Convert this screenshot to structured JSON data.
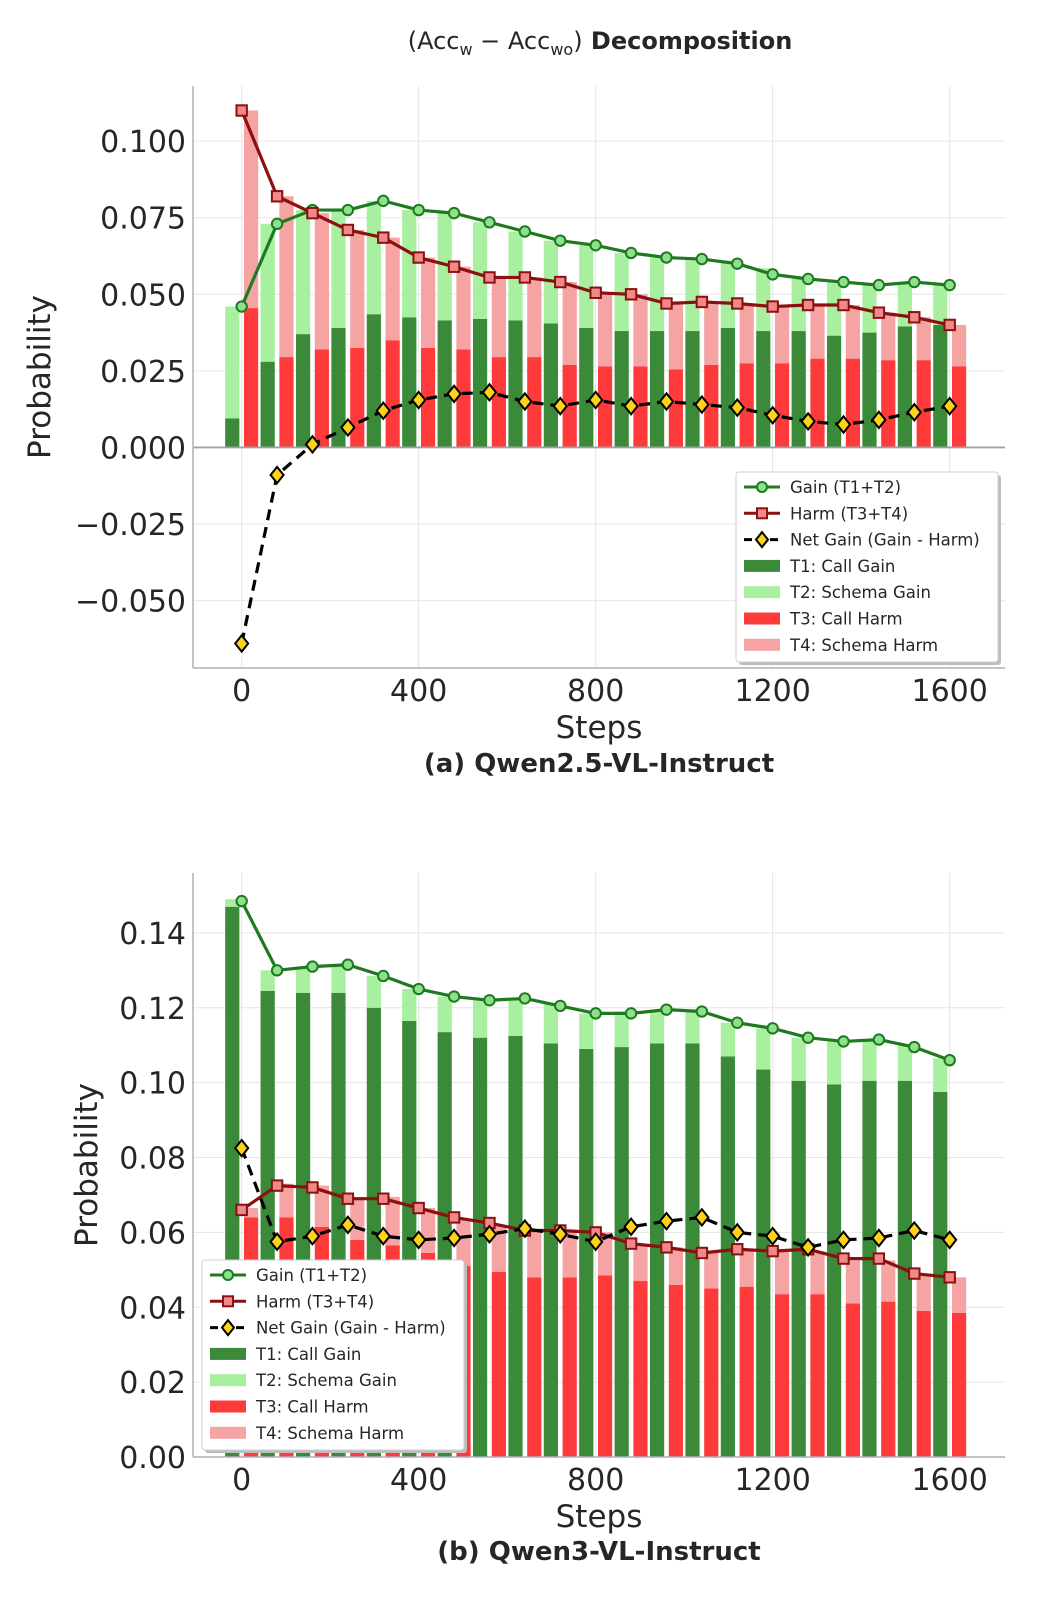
{
  "figure": {
    "title_prefix": "(Acc",
    "title_sub_w": "w",
    "title_minus": " − Acc",
    "title_sub_wo": "wo",
    "title_suffix": ")",
    "title_bold": " Decomposition"
  },
  "legend_labels": {
    "gain": "Gain (T1+T2)",
    "harm": "Harm (T3+T4)",
    "net": "Net Gain (Gain - Harm)",
    "t1": "T1: Call Gain",
    "t2": "T2: Schema Gain",
    "t3": "T3: Call Harm",
    "t4": "T4: Schema Harm"
  },
  "colors": {
    "t1": "#3a8a3a",
    "t2": "#a8f0a0",
    "t3": "#ff3a3a",
    "t4": "#f5a3a3",
    "gain_line": "#1e7a1e",
    "gain_marker": "#8ee08e",
    "harm_line": "#8b1010",
    "harm_marker": "#f08a8a",
    "net_line": "#000000",
    "net_marker": "#ffd21a",
    "grid": "#e6e6e6"
  },
  "chart_data": [
    {
      "type": "bar",
      "caption": "(a) Qwen2.5-VL-Instruct",
      "xlabel": "Steps",
      "ylabel": "Probability",
      "xlim": [
        -110,
        1725
      ],
      "ylim": [
        -0.072,
        0.118
      ],
      "xticks": [
        0,
        400,
        800,
        1200,
        1600
      ],
      "xtick_labels": [
        "0",
        "400",
        "800",
        "1200",
        "1600"
      ],
      "yticks": [
        -0.05,
        -0.025,
        0,
        0.025,
        0.05,
        0.075,
        0.1
      ],
      "ytick_labels": [
        "−0.050",
        "−0.025",
        "0.000",
        "0.025",
        "0.050",
        "0.075",
        "0.100"
      ],
      "zero_line": true,
      "legend_position": "lower-right",
      "steps": [
        0,
        80,
        160,
        240,
        320,
        400,
        480,
        560,
        640,
        720,
        800,
        880,
        960,
        1040,
        1120,
        1200,
        1280,
        1360,
        1440,
        1520,
        1600
      ],
      "series": [
        {
          "name": "T1: Call Gain",
          "values": [
            0.0095,
            0.028,
            0.037,
            0.039,
            0.0435,
            0.0425,
            0.0415,
            0.042,
            0.0415,
            0.0405,
            0.039,
            0.038,
            0.038,
            0.038,
            0.039,
            0.038,
            0.038,
            0.0365,
            0.0375,
            0.0395,
            0.04
          ]
        },
        {
          "name": "T2: Schema Gain",
          "values": [
            0.0365,
            0.045,
            0.0405,
            0.0385,
            0.037,
            0.035,
            0.035,
            0.0315,
            0.029,
            0.027,
            0.027,
            0.0255,
            0.024,
            0.024,
            0.022,
            0.0205,
            0.017,
            0.0175,
            0.0155,
            0.0145,
            0.013
          ]
        },
        {
          "name": "T3: Call Harm",
          "values": [
            0.0455,
            0.0295,
            0.032,
            0.0325,
            0.035,
            0.0325,
            0.032,
            0.0295,
            0.0295,
            0.027,
            0.0265,
            0.0265,
            0.0255,
            0.027,
            0.0275,
            0.0275,
            0.029,
            0.029,
            0.0285,
            0.0285,
            0.0265
          ]
        },
        {
          "name": "T4: Schema Harm",
          "values": [
            0.0645,
            0.0525,
            0.0445,
            0.0385,
            0.0335,
            0.0295,
            0.027,
            0.026,
            0.026,
            0.027,
            0.024,
            0.0235,
            0.0215,
            0.0205,
            0.0195,
            0.0185,
            0.0175,
            0.0175,
            0.0155,
            0.014,
            0.0135
          ]
        },
        {
          "name": "Gain (T1+T2)",
          "values": [
            0.046,
            0.073,
            0.0775,
            0.0775,
            0.0805,
            0.0775,
            0.0765,
            0.0735,
            0.0705,
            0.0675,
            0.066,
            0.0635,
            0.062,
            0.0615,
            0.06,
            0.0565,
            0.055,
            0.054,
            0.053,
            0.054,
            0.053
          ]
        },
        {
          "name": "Harm (T3+T4)",
          "values": [
            0.11,
            0.082,
            0.0765,
            0.071,
            0.0685,
            0.062,
            0.059,
            0.0555,
            0.0555,
            0.054,
            0.0505,
            0.05,
            0.047,
            0.0475,
            0.047,
            0.046,
            0.0465,
            0.0465,
            0.044,
            0.0425,
            0.04
          ]
        },
        {
          "name": "Net Gain (Gain - Harm)",
          "values": [
            -0.064,
            -0.009,
            0.001,
            0.0065,
            0.012,
            0.0155,
            0.0175,
            0.018,
            0.015,
            0.0135,
            0.0155,
            0.0135,
            0.015,
            0.014,
            0.013,
            0.0105,
            0.0085,
            0.0075,
            0.009,
            0.0115,
            0.0135
          ]
        }
      ]
    },
    {
      "type": "bar",
      "caption": "(b) Qwen3-VL-Instruct",
      "xlabel": "Steps",
      "ylabel": "Probability",
      "xlim": [
        -110,
        1725
      ],
      "ylim": [
        0,
        0.156
      ],
      "xticks": [
        0,
        400,
        800,
        1200,
        1600
      ],
      "xtick_labels": [
        "0",
        "400",
        "800",
        "1200",
        "1600"
      ],
      "yticks": [
        0,
        0.02,
        0.04,
        0.06,
        0.08,
        0.1,
        0.12,
        0.14
      ],
      "ytick_labels": [
        "0.00",
        "0.02",
        "0.04",
        "0.06",
        "0.08",
        "0.10",
        "0.12",
        "0.14"
      ],
      "zero_line": false,
      "legend_position": "lower-left",
      "steps": [
        0,
        80,
        160,
        240,
        320,
        400,
        480,
        560,
        640,
        720,
        800,
        880,
        960,
        1040,
        1120,
        1200,
        1280,
        1360,
        1440,
        1520,
        1600
      ],
      "series": [
        {
          "name": "T1: Call Gain",
          "values": [
            0.147,
            0.1245,
            0.124,
            0.124,
            0.12,
            0.1165,
            0.1135,
            0.112,
            0.1125,
            0.1105,
            0.109,
            0.1095,
            0.1105,
            0.1105,
            0.107,
            0.1035,
            0.1005,
            0.0995,
            0.1005,
            0.1005,
            0.0975
          ]
        },
        {
          "name": "T2: Schema Gain",
          "values": [
            0.002,
            0.0055,
            0.0065,
            0.007,
            0.0085,
            0.0085,
            0.0095,
            0.01,
            0.01,
            0.0105,
            0.0095,
            0.0095,
            0.009,
            0.009,
            0.009,
            0.011,
            0.0115,
            0.0115,
            0.011,
            0.0095,
            0.009
          ]
        },
        {
          "name": "T3: Call Harm",
          "values": [
            0.064,
            0.064,
            0.0615,
            0.058,
            0.0565,
            0.0545,
            0.051,
            0.0495,
            0.048,
            0.048,
            0.0485,
            0.047,
            0.046,
            0.045,
            0.0455,
            0.0435,
            0.0435,
            0.041,
            0.0415,
            0.039,
            0.0385
          ]
        },
        {
          "name": "T4: Schema Harm",
          "values": [
            0.0025,
            0.009,
            0.011,
            0.011,
            0.013,
            0.012,
            0.0125,
            0.0125,
            0.0125,
            0.0125,
            0.0115,
            0.01,
            0.01,
            0.0095,
            0.01,
            0.0115,
            0.0115,
            0.0115,
            0.011,
            0.01,
            0.0095
          ]
        },
        {
          "name": "Gain (T1+T2)",
          "values": [
            0.1485,
            0.13,
            0.131,
            0.1315,
            0.1285,
            0.125,
            0.123,
            0.122,
            0.1225,
            0.1205,
            0.1185,
            0.1185,
            0.1195,
            0.119,
            0.116,
            0.1145,
            0.112,
            0.111,
            0.1115,
            0.1095,
            0.106
          ]
        },
        {
          "name": "Harm (T3+T4)",
          "values": [
            0.066,
            0.0725,
            0.072,
            0.069,
            0.069,
            0.0665,
            0.064,
            0.0625,
            0.0605,
            0.0605,
            0.06,
            0.057,
            0.056,
            0.0545,
            0.0555,
            0.055,
            0.0555,
            0.053,
            0.053,
            0.049,
            0.048
          ]
        },
        {
          "name": "Net Gain (Gain - Harm)",
          "values": [
            0.0825,
            0.0575,
            0.059,
            0.062,
            0.059,
            0.058,
            0.0585,
            0.0595,
            0.061,
            0.0595,
            0.0575,
            0.0615,
            0.063,
            0.064,
            0.06,
            0.059,
            0.056,
            0.058,
            0.0585,
            0.0605,
            0.058
          ]
        }
      ]
    }
  ]
}
